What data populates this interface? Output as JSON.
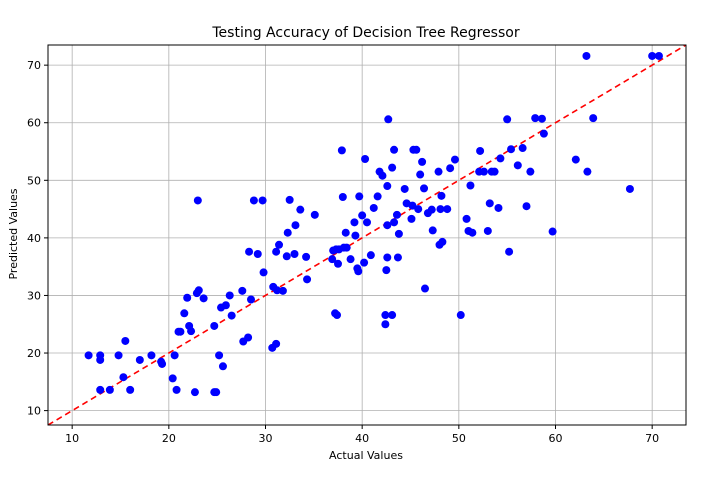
{
  "chart_data": {
    "type": "scatter",
    "title": "Testing Accuracy of Decision Tree Regressor",
    "xlabel": "Actual Values",
    "ylabel": "Predicted Values",
    "xlim": [
      7.5,
      73.5
    ],
    "ylim": [
      7.5,
      73.5
    ],
    "xticks": [
      10,
      20,
      30,
      40,
      50,
      60,
      70
    ],
    "yticks": [
      10,
      20,
      30,
      40,
      50,
      60,
      70
    ],
    "grid": true,
    "point_color": "#0000ff",
    "reference_line": {
      "style": "dashed",
      "color": "#ff0000",
      "from": [
        7.5,
        7.5
      ],
      "to": [
        73.5,
        73.5
      ]
    },
    "points": [
      [
        11.7,
        19.6
      ],
      [
        12.9,
        19.6
      ],
      [
        12.9,
        18.8
      ],
      [
        14.8,
        19.6
      ],
      [
        15.5,
        22.1
      ],
      [
        17.0,
        18.8
      ],
      [
        18.2,
        19.6
      ],
      [
        19.2,
        18.5
      ],
      [
        19.3,
        18.1
      ],
      [
        20.6,
        19.6
      ],
      [
        12.9,
        13.6
      ],
      [
        13.9,
        13.6
      ],
      [
        15.3,
        15.8
      ],
      [
        16.0,
        13.6
      ],
      [
        20.4,
        15.6
      ],
      [
        20.8,
        13.6
      ],
      [
        22.7,
        13.2
      ],
      [
        24.7,
        13.2
      ],
      [
        24.9,
        13.2
      ],
      [
        25.2,
        19.6
      ],
      [
        25.6,
        17.7
      ],
      [
        21.0,
        23.7
      ],
      [
        21.2,
        23.7
      ],
      [
        21.6,
        26.9
      ],
      [
        21.9,
        29.6
      ],
      [
        22.1,
        24.7
      ],
      [
        22.3,
        23.8
      ],
      [
        22.9,
        30.4
      ],
      [
        23.1,
        30.9
      ],
      [
        23.6,
        29.5
      ],
      [
        24.7,
        24.7
      ],
      [
        25.4,
        27.9
      ],
      [
        25.9,
        28.3
      ],
      [
        26.3,
        30.0
      ],
      [
        26.5,
        26.5
      ],
      [
        27.6,
        30.8
      ],
      [
        27.7,
        22.0
      ],
      [
        28.2,
        22.7
      ],
      [
        28.3,
        37.6
      ],
      [
        28.5,
        29.3
      ],
      [
        28.8,
        46.5
      ],
      [
        29.2,
        37.2
      ],
      [
        29.7,
        46.5
      ],
      [
        29.8,
        34.0
      ],
      [
        30.7,
        20.9
      ],
      [
        30.8,
        31.5
      ],
      [
        31.1,
        21.6
      ],
      [
        31.1,
        37.6
      ],
      [
        31.2,
        30.9
      ],
      [
        31.4,
        38.8
      ],
      [
        31.8,
        30.8
      ],
      [
        32.2,
        36.8
      ],
      [
        32.3,
        40.9
      ],
      [
        32.5,
        46.6
      ],
      [
        23.0,
        46.5
      ],
      [
        33.0,
        37.2
      ],
      [
        33.1,
        42.2
      ],
      [
        33.6,
        44.9
      ],
      [
        34.2,
        36.7
      ],
      [
        34.3,
        32.8
      ],
      [
        35.1,
        44.0
      ],
      [
        36.9,
        36.3
      ],
      [
        37.0,
        37.8
      ],
      [
        37.2,
        26.9
      ],
      [
        37.3,
        38.0
      ],
      [
        37.4,
        26.6
      ],
      [
        37.5,
        35.5
      ],
      [
        37.6,
        38.0
      ],
      [
        37.9,
        55.2
      ],
      [
        38.0,
        47.1
      ],
      [
        38.1,
        38.3
      ],
      [
        38.3,
        40.9
      ],
      [
        38.4,
        38.3
      ],
      [
        38.8,
        36.3
      ],
      [
        39.2,
        42.7
      ],
      [
        39.3,
        40.4
      ],
      [
        39.5,
        34.7
      ],
      [
        39.6,
        34.2
      ],
      [
        39.7,
        47.2
      ],
      [
        40.0,
        43.9
      ],
      [
        40.2,
        35.7
      ],
      [
        40.3,
        53.7
      ],
      [
        40.5,
        42.7
      ],
      [
        40.9,
        37.0
      ],
      [
        41.2,
        45.2
      ],
      [
        41.6,
        47.2
      ],
      [
        41.8,
        51.5
      ],
      [
        42.1,
        50.8
      ],
      [
        42.4,
        26.6
      ],
      [
        42.4,
        25.0
      ],
      [
        42.5,
        34.4
      ],
      [
        42.6,
        36.6
      ],
      [
        42.6,
        42.2
      ],
      [
        42.6,
        49.0
      ],
      [
        42.7,
        60.6
      ],
      [
        43.1,
        26.6
      ],
      [
        43.1,
        52.2
      ],
      [
        43.3,
        42.7
      ],
      [
        43.3,
        55.3
      ],
      [
        43.6,
        44.0
      ],
      [
        43.7,
        36.6
      ],
      [
        43.8,
        40.7
      ],
      [
        44.4,
        48.5
      ],
      [
        44.6,
        46.0
      ],
      [
        45.1,
        43.3
      ],
      [
        45.2,
        45.6
      ],
      [
        45.3,
        55.3
      ],
      [
        45.6,
        55.3
      ],
      [
        45.8,
        45.0
      ],
      [
        46.0,
        51.0
      ],
      [
        46.2,
        53.2
      ],
      [
        46.4,
        48.6
      ],
      [
        46.5,
        31.2
      ],
      [
        46.8,
        44.3
      ],
      [
        47.2,
        44.9
      ],
      [
        47.3,
        41.3
      ],
      [
        47.9,
        51.5
      ],
      [
        48.0,
        38.8
      ],
      [
        48.1,
        45.0
      ],
      [
        48.2,
        47.3
      ],
      [
        48.3,
        39.3
      ],
      [
        48.8,
        45.0
      ],
      [
        49.1,
        52.1
      ],
      [
        49.6,
        53.6
      ],
      [
        50.2,
        26.6
      ],
      [
        50.8,
        43.3
      ],
      [
        51.0,
        41.2
      ],
      [
        51.2,
        49.1
      ],
      [
        51.4,
        40.9
      ],
      [
        52.1,
        51.5
      ],
      [
        52.2,
        55.1
      ],
      [
        52.6,
        51.5
      ],
      [
        53.0,
        41.2
      ],
      [
        53.2,
        46.0
      ],
      [
        53.4,
        51.5
      ],
      [
        53.7,
        51.5
      ],
      [
        54.1,
        45.2
      ],
      [
        54.3,
        53.8
      ],
      [
        55.0,
        60.6
      ],
      [
        55.2,
        37.6
      ],
      [
        55.4,
        55.4
      ],
      [
        56.1,
        52.6
      ],
      [
        56.6,
        55.6
      ],
      [
        57.0,
        45.5
      ],
      [
        57.4,
        51.5
      ],
      [
        57.9,
        60.8
      ],
      [
        58.6,
        60.7
      ],
      [
        58.8,
        58.1
      ],
      [
        59.7,
        41.1
      ],
      [
        62.1,
        53.6
      ],
      [
        63.2,
        71.6
      ],
      [
        63.3,
        51.5
      ],
      [
        63.9,
        60.8
      ],
      [
        67.7,
        48.5
      ],
      [
        70.0,
        71.6
      ],
      [
        70.7,
        71.6
      ]
    ]
  }
}
